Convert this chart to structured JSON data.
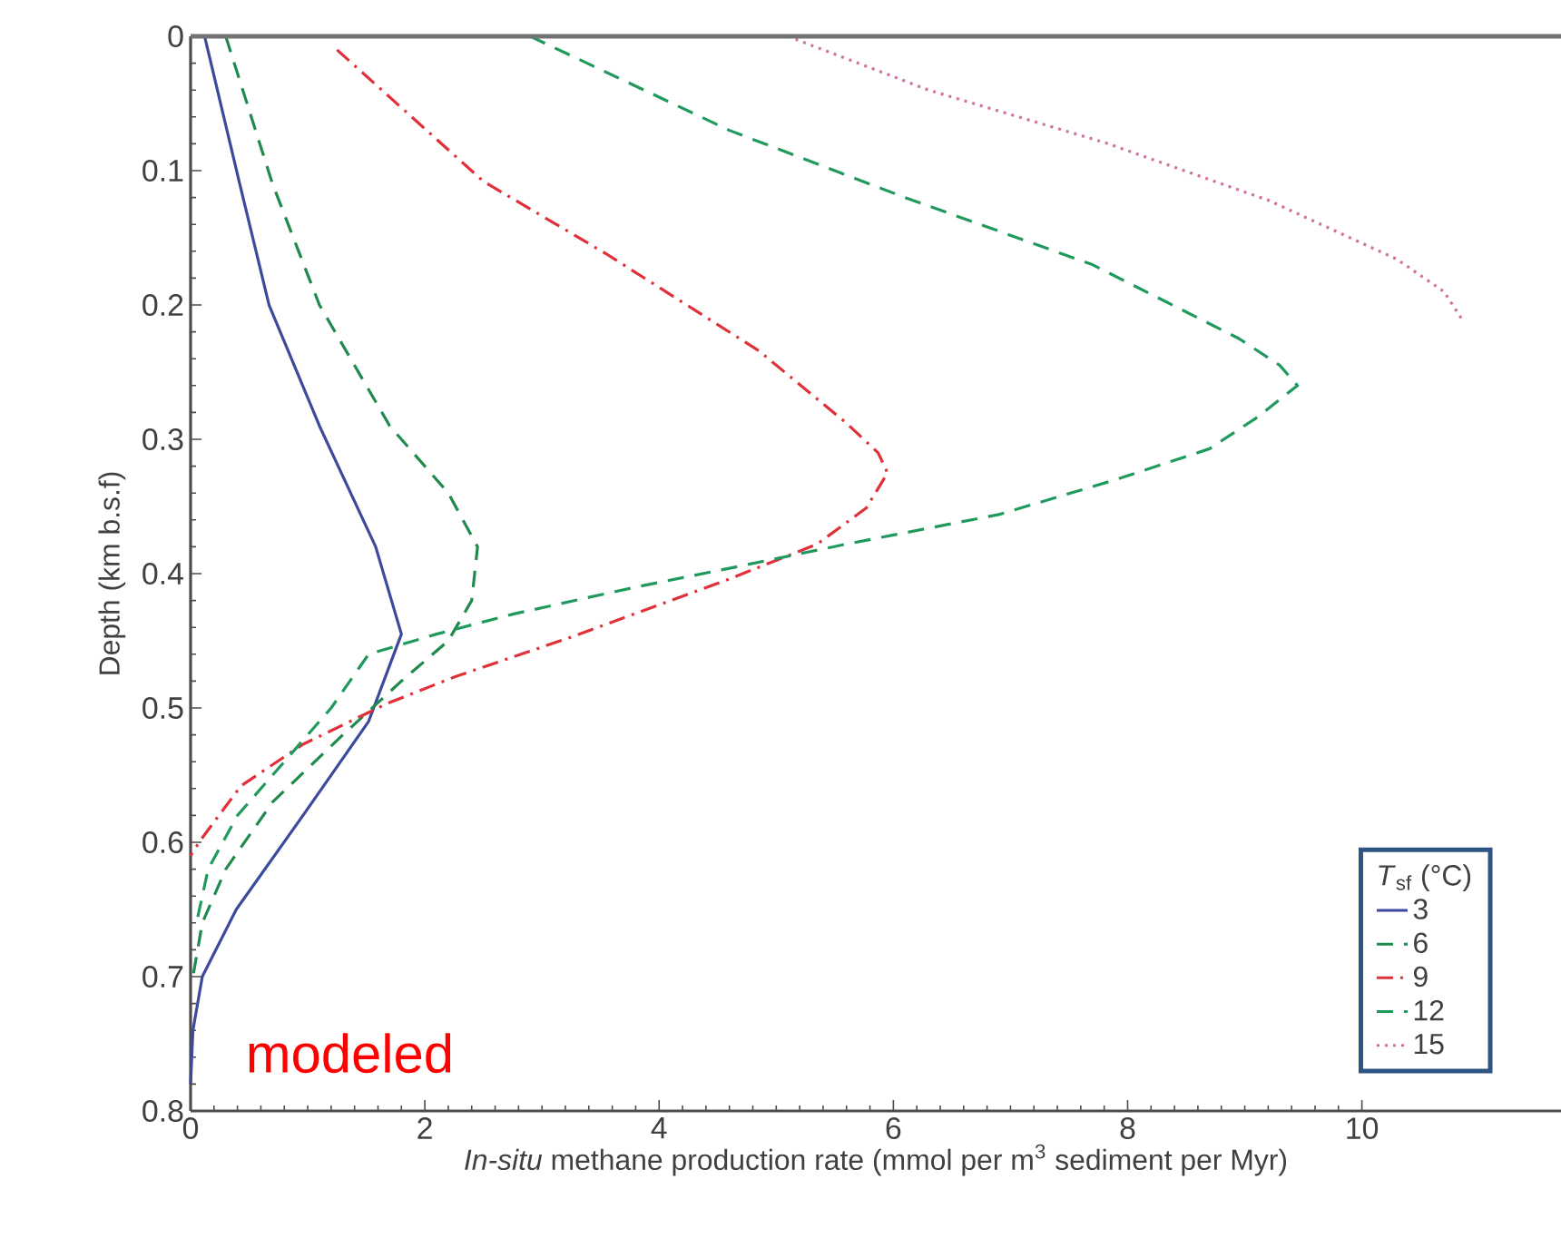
{
  "chart_data": {
    "type": "line",
    "xlabel": "*In-situ* methane production rate (mmol per m$^{3}$ sediment per Myr)",
    "ylabel": "Depth (km b.s.f)",
    "legend_title": "*T*$_{sf}$ (°C)",
    "annotations": [
      "modeled"
    ],
    "xlim": [
      0,
      11.7
    ],
    "xticks": [
      0,
      2,
      4,
      6,
      8,
      10
    ],
    "ylim": [
      0.8,
      0
    ],
    "yticks": [
      0,
      0.1,
      0.2,
      0.3,
      0.4,
      0.5,
      0.6,
      0.7,
      0.8
    ],
    "legend": "bottom right",
    "series": [
      {
        "name": "3",
        "color": "#3b4a9a",
        "line_style": "solid",
        "x": [
          0.12,
          0.42,
          0.67,
          1.1,
          1.58,
          1.8,
          1.52,
          0.96,
          0.39,
          0.1,
          0.02,
          0.0
        ],
        "values": [
          0.0,
          0.11,
          0.2,
          0.29,
          0.38,
          0.445,
          0.51,
          0.58,
          0.65,
          0.7,
          0.74,
          0.78
        ]
      },
      {
        "name": "6",
        "color": "#1f8a4c",
        "line_style": "dashed",
        "x": [
          0.3,
          0.7,
          1.1,
          1.7,
          2.2,
          2.45,
          2.4,
          2.2,
          1.8,
          1.3,
          0.7,
          0.3,
          0.1,
          0.02
        ],
        "values": [
          0.0,
          0.11,
          0.2,
          0.29,
          0.34,
          0.38,
          0.42,
          0.45,
          0.48,
          0.52,
          0.57,
          0.62,
          0.66,
          0.7
        ]
      },
      {
        "name": "9",
        "color": "#e0303a",
        "line_style": "dashdot",
        "x": [
          1.25,
          2.5,
          3.55,
          4.85,
          5.6,
          5.87,
          5.95,
          5.77,
          5.35,
          4.57,
          3.29,
          2.25,
          1.67,
          0.96,
          0.43,
          0.08,
          0.0
        ],
        "values": [
          0.01,
          0.108,
          0.162,
          0.234,
          0.288,
          0.31,
          0.325,
          0.351,
          0.378,
          0.405,
          0.446,
          0.477,
          0.497,
          0.527,
          0.558,
          0.599,
          0.61
        ]
      },
      {
        "name": "12",
        "color": "#1f9a5c",
        "line_style": "dashed",
        "x": [
          2.9,
          4.6,
          6.1,
          7.7,
          8.95,
          9.3,
          9.45,
          9.1,
          8.7,
          7.9,
          6.9,
          5.6,
          4.6,
          3.8,
          2.76,
          2.1,
          1.52,
          1.2,
          0.8,
          0.4,
          0.15,
          0.05
        ],
        "values": [
          0.0,
          0.07,
          0.12,
          0.17,
          0.225,
          0.245,
          0.26,
          0.284,
          0.307,
          0.33,
          0.356,
          0.378,
          0.396,
          0.41,
          0.43,
          0.445,
          0.46,
          0.5,
          0.54,
          0.58,
          0.62,
          0.66
        ]
      },
      {
        "name": "15",
        "color": "#d070a0",
        "line_style": "dotted",
        "x": [
          5.1,
          6.3,
          7.8,
          9.2,
          10.3,
          10.7,
          10.85
        ],
        "values": [
          0.0,
          0.04,
          0.079,
          0.122,
          0.166,
          0.19,
          0.21
        ]
      }
    ]
  }
}
